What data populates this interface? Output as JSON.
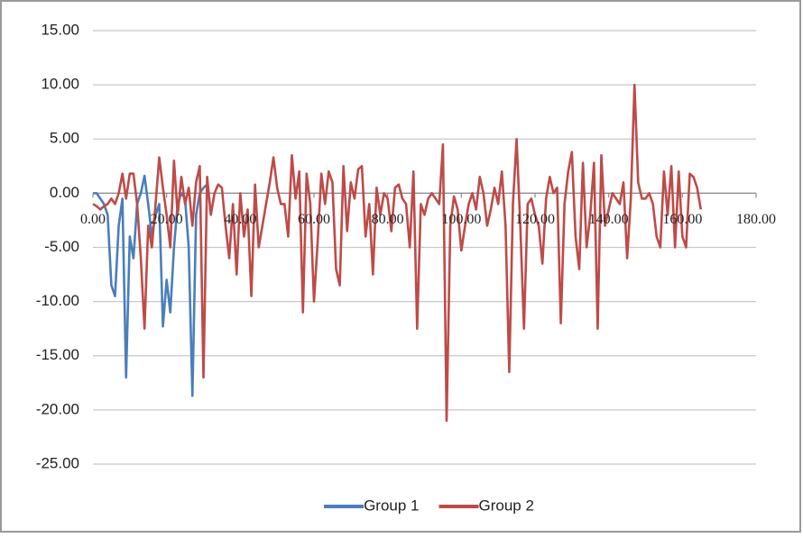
{
  "chart_data": {
    "type": "line",
    "xlim": [
      0,
      180
    ],
    "xticks": [
      {
        "value": 0,
        "label": "0.00"
      },
      {
        "value": 20,
        "label": "20.00"
      },
      {
        "value": 40,
        "label": "40.00"
      },
      {
        "value": 60,
        "label": "60.00"
      },
      {
        "value": 80,
        "label": "80.00"
      },
      {
        "value": 100,
        "label": "100.00"
      },
      {
        "value": 120,
        "label": "120.00"
      },
      {
        "value": 140,
        "label": "140.00"
      },
      {
        "value": 160,
        "label": "160.00"
      },
      {
        "value": 180,
        "label": "180.00"
      }
    ],
    "ylim": [
      -25,
      15
    ],
    "yticks": [
      {
        "value": 15,
        "label": "15.00"
      },
      {
        "value": 10,
        "label": "10.00"
      },
      {
        "value": 5,
        "label": "5.00"
      },
      {
        "value": 0,
        "label": "0.00"
      },
      {
        "value": -5,
        "label": "-5.00"
      },
      {
        "value": -10,
        "label": "-10.00"
      },
      {
        "value": -15,
        "label": "-15.00"
      },
      {
        "value": -20,
        "label": "-20.00"
      },
      {
        "value": -25,
        "label": "-25.00"
      }
    ],
    "grid": true,
    "legend": "bottom",
    "series": [
      {
        "name": "Group 1",
        "color": "#4a7ebb",
        "x": [
          0,
          1,
          2,
          3,
          4,
          5,
          6,
          7,
          8,
          9,
          10,
          11,
          12,
          13,
          14,
          15,
          16,
          17,
          18,
          19,
          20,
          21,
          22,
          23,
          24,
          25,
          26,
          27,
          28,
          29,
          30,
          31
        ],
        "values": [
          0,
          0,
          -0.5,
          -1,
          -2,
          -8.5,
          -9.5,
          -3,
          -0.5,
          -17,
          -4,
          -6,
          -1,
          0,
          1.6,
          -1,
          -4,
          -2,
          -1,
          -12.3,
          -8,
          -11,
          -5,
          -1,
          0,
          -0.5,
          -5,
          -18.7,
          -2,
          0,
          0.5,
          0.8
        ]
      },
      {
        "name": "Group 2",
        "color": "#be4b48",
        "x": [
          0,
          1,
          2,
          3,
          4,
          5,
          6,
          7,
          8,
          9,
          10,
          11,
          12,
          13,
          14,
          15,
          16,
          17,
          18,
          19,
          20,
          21,
          22,
          23,
          24,
          25,
          26,
          27,
          28,
          29,
          30,
          31,
          32,
          33,
          34,
          35,
          36,
          37,
          38,
          39,
          40,
          41,
          42,
          43,
          44,
          45,
          46,
          47,
          48,
          49,
          50,
          51,
          52,
          53,
          54,
          55,
          56,
          57,
          58,
          59,
          60,
          61,
          62,
          63,
          64,
          65,
          66,
          67,
          68,
          69,
          70,
          71,
          72,
          73,
          74,
          75,
          76,
          77,
          78,
          79,
          80,
          81,
          82,
          83,
          84,
          85,
          86,
          87,
          88,
          89,
          90,
          91,
          92,
          93,
          94,
          95,
          96,
          97,
          98,
          99,
          100,
          101,
          102,
          103,
          104,
          105,
          106,
          107,
          108,
          109,
          110,
          111,
          112,
          113,
          114,
          115,
          116,
          117,
          118,
          119,
          120,
          121,
          122,
          123,
          124,
          125,
          126,
          127,
          128,
          129,
          130,
          131,
          132,
          133,
          134,
          135,
          136,
          137,
          138,
          139,
          140,
          141,
          142,
          143,
          144,
          145,
          146,
          147,
          148,
          149,
          150,
          151,
          152,
          153,
          154,
          155,
          156,
          157,
          158,
          159,
          160,
          161,
          162,
          163,
          164,
          165
        ],
        "values": [
          -1,
          -1.2,
          -1.5,
          -1.2,
          -1,
          -0.5,
          -1,
          0,
          1.8,
          -0.5,
          1.8,
          1.8,
          -1,
          -6,
          -12.5,
          -3,
          -5,
          -1,
          3.3,
          0.5,
          -2,
          -5,
          3,
          -2,
          1.5,
          -1,
          0.5,
          -3,
          1,
          2.5,
          -17,
          1.5,
          -2,
          0,
          0.8,
          0.5,
          -3,
          -6,
          -1,
          -7.5,
          0,
          -4,
          -1.5,
          -9.5,
          0.8,
          -5,
          -3,
          -1,
          1,
          3.3,
          0.5,
          -1,
          -1,
          -4,
          3.5,
          -0.5,
          2,
          -11,
          1.8,
          -1,
          -10,
          -4.5,
          1.8,
          -1,
          2,
          1,
          -7,
          -8.5,
          2.5,
          -3.5,
          1,
          -0.5,
          2.2,
          2.5,
          -4,
          -1,
          -7.5,
          0.5,
          -2,
          0,
          -0.5,
          -3.5,
          0.5,
          0.8,
          -0.5,
          -1,
          -5,
          2,
          -12.5,
          -1,
          -2,
          -0.5,
          0,
          -0.5,
          -1,
          4.5,
          -21,
          -3,
          -0.3,
          -1.5,
          -5.3,
          -3,
          -1,
          0,
          -1.5,
          1.5,
          0,
          -3,
          -1.5,
          0.5,
          -1,
          2,
          -3,
          -16.5,
          -1,
          5,
          -3,
          -12.5,
          -1,
          -0.5,
          -2,
          -3,
          -6.5,
          -0.5,
          1.5,
          0,
          0.5,
          -12,
          -1,
          2,
          3.8,
          -4,
          -7,
          2.8,
          -5,
          -2,
          2.8,
          -12.5,
          3.5,
          -3,
          -1.5,
          0,
          -0.5,
          -1,
          1,
          -6,
          -0.5,
          10,
          1,
          -0.5,
          -0.5,
          0,
          -1,
          -4,
          -5,
          2,
          -2,
          2.5,
          -5,
          2,
          -4,
          -5,
          1.8,
          1.5,
          0.5,
          -1.5
        ]
      }
    ]
  }
}
